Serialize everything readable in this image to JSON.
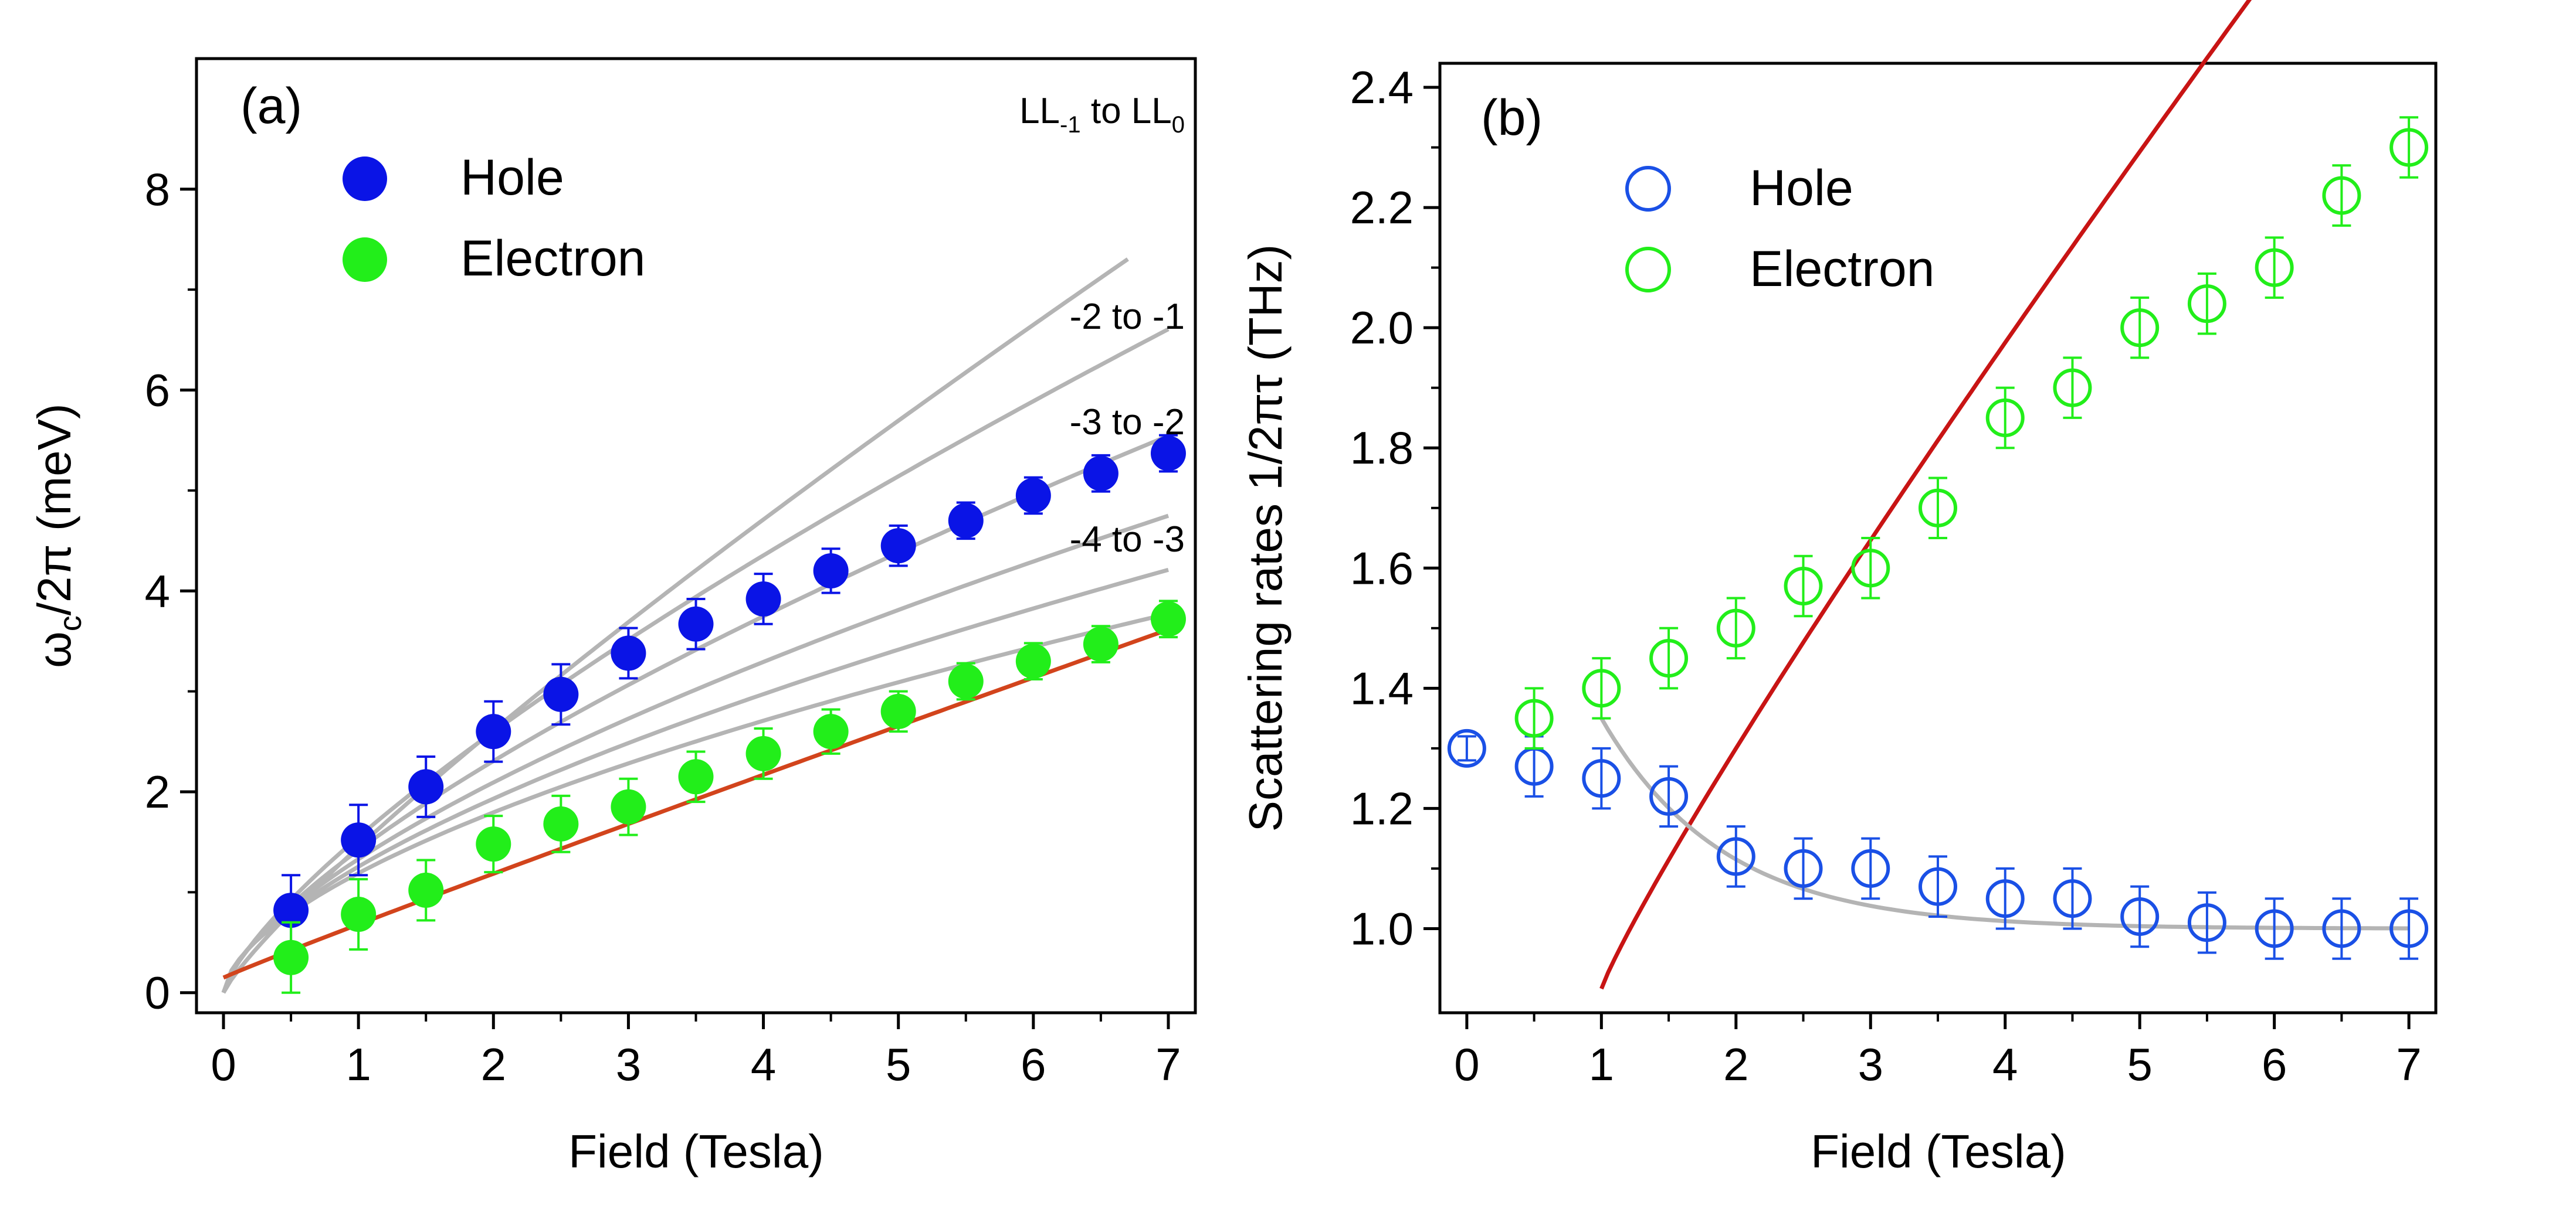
{
  "chart_data": [
    {
      "type": "scatter",
      "panel_label": "(a)",
      "xlabel": "Field (Tesla)",
      "ylabel_main": "ω",
      "ylabel_sub": "c",
      "ylabel_rest": "/2π (meV)",
      "xlim": [
        -0.2,
        7.2
      ],
      "ylim": [
        -0.2,
        9.3
      ],
      "xticks": [
        0,
        1,
        2,
        3,
        4,
        5,
        6,
        7
      ],
      "yticks": [
        0,
        2,
        4,
        6,
        8
      ],
      "legend_position": "top-left",
      "series": [
        {
          "name": "Hole",
          "color": "#0a14e6",
          "marker": "filled-circle",
          "x": [
            0.5,
            1.0,
            1.5,
            2.0,
            2.5,
            3.0,
            3.5,
            4.0,
            4.5,
            5.0,
            5.5,
            6.0,
            6.5,
            7.0
          ],
          "y": [
            0.82,
            1.52,
            2.05,
            2.6,
            2.97,
            3.38,
            3.67,
            3.92,
            4.2,
            4.45,
            4.7,
            4.95,
            5.17,
            5.37
          ],
          "err": [
            0.35,
            0.35,
            0.3,
            0.3,
            0.3,
            0.25,
            0.25,
            0.25,
            0.22,
            0.2,
            0.18,
            0.18,
            0.18,
            0.18
          ]
        },
        {
          "name": "Electron",
          "color": "#22ee1a",
          "marker": "filled-circle",
          "x": [
            0.5,
            1.0,
            1.5,
            2.0,
            2.5,
            3.0,
            3.5,
            4.0,
            4.5,
            5.0,
            5.5,
            6.0,
            6.5,
            7.0
          ],
          "y": [
            0.35,
            0.78,
            1.02,
            1.48,
            1.68,
            1.85,
            2.15,
            2.38,
            2.6,
            2.8,
            3.1,
            3.3,
            3.47,
            3.72
          ],
          "err": [
            0.35,
            0.35,
            0.3,
            0.28,
            0.28,
            0.28,
            0.25,
            0.25,
            0.22,
            0.2,
            0.18,
            0.18,
            0.18,
            0.18
          ]
        }
      ],
      "curves": [
        {
          "name": "LL-1 to LL0",
          "color": "#b4b4b4",
          "a": 1.45,
          "n": 0.85,
          "xmax": 6.7
        },
        {
          "name": "-2 to -1",
          "color": "#b4b4b4",
          "a": 1.55,
          "n": 0.745,
          "xmax": 7.0
        },
        {
          "name": "-3 to -2",
          "color": "#b4b4b4",
          "a": 1.42,
          "n": 0.7,
          "xmax": 7.0
        },
        {
          "name": "-4 to -3",
          "color": "#b4b4b4",
          "a": 1.33,
          "n": 0.654,
          "xmax": 7.0
        },
        {
          "name": "-5 to -4",
          "color": "#b4b4b4",
          "a": 1.255,
          "n": 0.622,
          "xmax": 7.0
        },
        {
          "name": "-6 to -5",
          "color": "#b4b4b4",
          "a": 1.19,
          "n": 0.593,
          "xmax": 7.0
        },
        {
          "name": "electron fit",
          "color": "#d2441c",
          "a": 0.53,
          "n": 0.965,
          "b": 0.15,
          "xmax": 7.0
        }
      ],
      "annotations": [
        {
          "text": "-2 to -1",
          "x": 6.4,
          "y": 6.6
        },
        {
          "text": "-3 to -2",
          "x": 6.4,
          "y": 5.55
        },
        {
          "text": "-4 to -3",
          "x": 6.4,
          "y": 4.35
        }
      ],
      "ll_annotation": {
        "p1": "LL",
        "s1": "-1",
        "p2": " to LL",
        "s2": "0",
        "x": 6.4,
        "y": 8.55
      }
    },
    {
      "type": "scatter",
      "panel_label": "(b)",
      "xlabel": "Field (Tesla)",
      "ylabel": "Scattering rates 1/2πτ (THz)",
      "xlim": [
        -0.2,
        7.2
      ],
      "ylim": [
        0.86,
        2.44
      ],
      "xticks": [
        0,
        1,
        2,
        3,
        4,
        5,
        6,
        7
      ],
      "yticks": [
        1.0,
        1.2,
        1.4,
        1.6,
        1.8,
        2.0,
        2.2,
        2.4
      ],
      "ytick_labels": [
        "1.0",
        "1.2",
        "1.4",
        "1.6",
        "1.8",
        "2.0",
        "2.2",
        "2.4"
      ],
      "legend_position": "top-left",
      "series": [
        {
          "name": "Hole",
          "color": "#1a50e6",
          "marker": "open-circle",
          "x": [
            0,
            0.5,
            1.0,
            1.5,
            2.0,
            2.5,
            3.0,
            3.5,
            4.0,
            4.5,
            5.0,
            5.5,
            6.0,
            6.5,
            7.0
          ],
          "y": [
            1.3,
            1.27,
            1.25,
            1.22,
            1.12,
            1.1,
            1.1,
            1.07,
            1.05,
            1.05,
            1.02,
            1.01,
            1.0,
            1.0,
            1.0
          ],
          "err": [
            0.02,
            0.05,
            0.05,
            0.05,
            0.05,
            0.05,
            0.05,
            0.05,
            0.05,
            0.05,
            0.05,
            0.05,
            0.05,
            0.05,
            0.05
          ]
        },
        {
          "name": "Electron",
          "color": "#22ee1a",
          "marker": "open-circle",
          "x": [
            0.5,
            1.0,
            1.5,
            2.0,
            2.5,
            3.0,
            3.5,
            4.0,
            4.5,
            5.0,
            5.5,
            6.0,
            6.5,
            7.0
          ],
          "y": [
            1.35,
            1.4,
            1.45,
            1.5,
            1.57,
            1.6,
            1.7,
            1.85,
            1.9,
            2.0,
            2.04,
            2.1,
            2.22,
            2.3
          ],
          "err": [
            0.05,
            0.05,
            0.05,
            0.05,
            0.05,
            0.05,
            0.05,
            0.05,
            0.05,
            0.05,
            0.05,
            0.05,
            0.05,
            0.05
          ]
        }
      ],
      "curves": [
        {
          "name": "electron fit",
          "color": "#c81414",
          "kind": "power",
          "a": 0.4,
          "b": 0.9,
          "n": 0.9,
          "xmin": 1.0,
          "xmax": 7.0
        },
        {
          "name": "hole fit",
          "color": "#b4b4b4",
          "kind": "decay",
          "base": 1.0,
          "amp": 0.35,
          "tau": 0.9,
          "xmin": 1.0,
          "xmax": 7.0
        }
      ]
    }
  ]
}
